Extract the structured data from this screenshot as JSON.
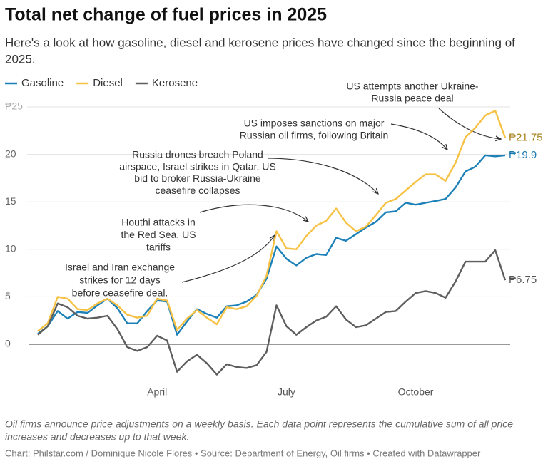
{
  "chart_data": {
    "type": "line",
    "title": "Total net change of fuel prices in 2025",
    "subtitle": [
      "Here's a look at how gasoline, diesel and kerosene prices have changed since the beginning of",
      "2025."
    ],
    "categories": [
      null,
      null,
      null,
      null,
      null,
      null,
      null,
      null,
      null,
      null,
      null,
      null,
      "April",
      null,
      null,
      null,
      null,
      null,
      null,
      null,
      null,
      null,
      null,
      null,
      null,
      "July",
      null,
      null,
      null,
      null,
      null,
      null,
      null,
      null,
      null,
      null,
      null,
      null,
      "October",
      null,
      null,
      null,
      null,
      null,
      null,
      null,
      null,
      null
    ],
    "series": [
      {
        "name": "Gasoline",
        "color": "#1d81b8",
        "label_color": "#1a7ab0",
        "values": [
          1.1,
          1.9,
          3.5,
          2.7,
          3.4,
          3.3,
          4.1,
          4.8,
          3.8,
          2.2,
          2.2,
          3.5,
          4.6,
          4.5,
          1.0,
          2.4,
          3.7,
          3.2,
          2.8,
          4.0,
          4.1,
          4.5,
          5.2,
          6.9,
          10.3,
          9.0,
          8.3,
          9.1,
          9.5,
          9.4,
          11.2,
          10.9,
          11.6,
          12.3,
          12.9,
          13.9,
          14.0,
          14.9,
          14.7,
          14.9,
          15.1,
          15.3,
          16.5,
          18.2,
          18.7,
          19.9,
          19.8,
          19.9
        ],
        "value_labels": [
          null,
          null,
          null,
          null,
          null,
          null,
          null,
          null,
          null,
          null,
          null,
          null,
          null,
          null,
          null,
          null,
          null,
          null,
          null,
          null,
          null,
          null,
          null,
          null,
          null,
          null,
          null,
          null,
          null,
          null,
          null,
          null,
          null,
          null,
          null,
          null,
          null,
          null,
          null,
          null,
          null,
          null,
          null,
          null,
          null,
          null,
          null,
          "₱19.9"
        ]
      },
      {
        "name": "Diesel",
        "color": "#f7c244",
        "label_color": "#a8821c",
        "values": [
          1.4,
          2.2,
          5.0,
          4.8,
          3.7,
          3.6,
          4.3,
          4.8,
          4.1,
          3.1,
          2.8,
          3.0,
          4.8,
          4.6,
          1.5,
          2.7,
          3.6,
          2.8,
          2.1,
          3.9,
          3.7,
          4.0,
          5.1,
          7.2,
          11.9,
          10.1,
          10.0,
          11.4,
          12.5,
          13.0,
          14.3,
          12.8,
          11.9,
          12.4,
          13.6,
          14.9,
          15.3,
          16.2,
          17.1,
          17.9,
          17.9,
          17.2,
          19.1,
          21.8,
          22.8,
          24.1,
          24.6,
          21.75
        ],
        "value_labels": [
          null,
          null,
          null,
          null,
          null,
          null,
          null,
          null,
          null,
          null,
          null,
          null,
          null,
          null,
          null,
          null,
          null,
          null,
          null,
          null,
          null,
          null,
          null,
          null,
          null,
          null,
          null,
          null,
          null,
          null,
          null,
          null,
          null,
          null,
          null,
          null,
          null,
          null,
          null,
          null,
          null,
          null,
          null,
          null,
          null,
          null,
          null,
          "₱21.75"
        ]
      },
      {
        "name": "Kerosene",
        "color": "#5e5e5e",
        "label_color": "#555555",
        "values": [
          1.0,
          1.9,
          4.3,
          3.9,
          3.0,
          2.7,
          2.8,
          3.0,
          1.6,
          -0.3,
          -0.7,
          -0.3,
          0.9,
          0.4,
          -2.9,
          -1.8,
          -1.1,
          -2.0,
          -3.2,
          -2.1,
          -2.4,
          -2.5,
          -2.2,
          -0.8,
          4.1,
          1.9,
          1.0,
          1.8,
          2.5,
          2.9,
          4.0,
          2.6,
          1.8,
          2.0,
          2.7,
          3.4,
          3.5,
          4.5,
          5.4,
          5.6,
          5.4,
          4.9,
          6.6,
          8.7,
          8.7,
          8.7,
          9.9,
          6.75
        ],
        "value_labels": [
          null,
          null,
          null,
          null,
          null,
          null,
          null,
          null,
          null,
          null,
          null,
          null,
          null,
          null,
          null,
          null,
          null,
          null,
          null,
          null,
          null,
          null,
          null,
          null,
          null,
          null,
          null,
          null,
          null,
          null,
          null,
          null,
          null,
          null,
          null,
          null,
          null,
          null,
          null,
          null,
          null,
          null,
          null,
          null,
          null,
          null,
          null,
          "₱6.75"
        ]
      }
    ],
    "ylim": [
      -4,
      25
    ],
    "yticks": [
      0,
      5,
      10,
      15,
      20,
      {
        "value": 25,
        "label": "₱25"
      }
    ],
    "grid": true,
    "legend": "top-left",
    "annotations": [
      {
        "text": [
          "Israel and Iran exchange",
          "strikes for 12 days",
          "before ceasefire deal."
        ]
      },
      {
        "text": [
          "Houthi attacks in",
          "the Red Sea, US",
          "tariffs"
        ]
      },
      {
        "text": [
          "Russia drones breach Poland",
          "airspace, Israel strikes in Qatar, US",
          "bid to broker Russia-Ukraine",
          "ceasefire collapses"
        ]
      },
      {
        "text": [
          "US imposes sanctions on major",
          "Russian oil firms, following Britain"
        ]
      },
      {
        "text": [
          "US attempts another Ukraine-",
          "Russia peace deal"
        ]
      }
    ],
    "notes": [
      "Oil firms announce price adjustments on a weekly basis. Each data point represents the cumulative sum of all price",
      "increases and decreases up to that week."
    ],
    "credit": "Chart: Philstar.com / Dominique Nicole Flores • Source: Department of Energy, Oil firms • Created with Datawrapper"
  }
}
